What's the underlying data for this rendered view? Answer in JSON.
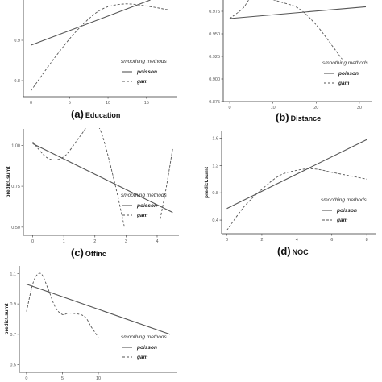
{
  "legend": {
    "title": "smoothing methods",
    "solid_label": "poisson",
    "dashed_label": "gam"
  },
  "colors": {
    "line": "#555555",
    "axis": "#333333",
    "text": "#111111"
  },
  "chart_data": [
    {
      "type": "line",
      "panel_letter": "(a)",
      "caption": "Education",
      "xlabel": "",
      "ylabel": "",
      "xlim": [
        -1,
        19
      ],
      "ylim": [
        0.76,
        1.0
      ],
      "xticks": [
        0,
        5,
        10,
        15
      ],
      "yticks": [
        0.8,
        0.9
      ],
      "xtick_labels": [
        "0",
        "5",
        "10",
        "15"
      ],
      "ytick_labels": [
        "0.8",
        "0.9"
      ],
      "series": [
        {
          "name": "poisson",
          "style": "solid",
          "x": [
            0,
            15.5
          ],
          "y": [
            0.888,
            1.0
          ]
        },
        {
          "name": "gam",
          "style": "dashed",
          "x": [
            0,
            3,
            6,
            9,
            12,
            15,
            18
          ],
          "y": [
            0.775,
            0.855,
            0.925,
            0.975,
            0.99,
            0.985,
            0.975
          ]
        }
      ]
    },
    {
      "type": "line",
      "panel_letter": "(b)",
      "caption": "Distance",
      "xlabel": "",
      "ylabel": "",
      "xlim": [
        -1.5,
        33
      ],
      "ylim": [
        0.875,
        0.9875
      ],
      "xticks": [
        0,
        10,
        20,
        30
      ],
      "yticks": [
        0.875,
        0.9,
        0.925,
        0.95,
        0.975
      ],
      "xtick_labels": [
        "0",
        "10",
        "20",
        "30"
      ],
      "ytick_labels": [
        "0.875",
        "0.900",
        "0.925",
        "0.950",
        "0.975"
      ],
      "series": [
        {
          "name": "poisson",
          "style": "solid",
          "x": [
            0,
            31.5
          ],
          "y": [
            0.967,
            0.98
          ]
        },
        {
          "name": "gam",
          "style": "dashed",
          "x": [
            0,
            3,
            5,
            8,
            12,
            16,
            20,
            24,
            26
          ],
          "y": [
            0.967,
            0.978,
            0.99,
            0.99,
            0.985,
            0.978,
            0.96,
            0.935,
            0.922
          ]
        }
      ]
    },
    {
      "type": "line",
      "panel_letter": "(c)",
      "caption": "Offinc",
      "xlabel": "",
      "ylabel": "predict.sumt",
      "xlim": [
        -0.3,
        4.7
      ],
      "ylim": [
        0.45,
        1.1
      ],
      "xticks": [
        0,
        1,
        2,
        3,
        4
      ],
      "yticks": [
        0.5,
        0.75,
        1.0
      ],
      "xtick_labels": [
        "0",
        "1",
        "2",
        "3",
        "4"
      ],
      "ytick_labels": [
        "0.50",
        "0.75",
        "1.00"
      ],
      "series": [
        {
          "name": "poisson",
          "style": "solid",
          "x": [
            0,
            4.5
          ],
          "y": [
            1.01,
            0.59
          ]
        },
        {
          "name": "gam",
          "style": "dashed",
          "x": [
            0,
            0.5,
            1.0,
            1.5,
            1.9,
            2.2,
            2.6,
            2.95
          ],
          "y": [
            1.02,
            0.92,
            0.93,
            1.05,
            1.14,
            1.08,
            0.8,
            0.5
          ]
        },
        {
          "name": "gam",
          "style": "dashed",
          "x": [
            4.1,
            4.3,
            4.5
          ],
          "y": [
            0.55,
            0.75,
            0.98
          ]
        }
      ]
    },
    {
      "type": "line",
      "panel_letter": "(d)",
      "caption": "NOC",
      "xlabel": "",
      "ylabel": "predict.sumt",
      "xlim": [
        -0.3,
        8.5
      ],
      "ylim": [
        0.2,
        1.7
      ],
      "xticks": [
        0,
        2,
        4,
        6,
        8
      ],
      "yticks": [
        0.4,
        0.8,
        1.2,
        1.6
      ],
      "xtick_labels": [
        "0",
        "2",
        "4",
        "6",
        "8"
      ],
      "ytick_labels": [
        "0.4",
        "0.8",
        "1.2",
        "1.6"
      ],
      "series": [
        {
          "name": "poisson",
          "style": "solid",
          "x": [
            0,
            8
          ],
          "y": [
            0.57,
            1.58
          ]
        },
        {
          "name": "gam",
          "style": "dashed",
          "x": [
            0,
            1,
            2,
            3,
            4,
            5,
            6,
            7,
            8
          ],
          "y": [
            0.25,
            0.6,
            0.85,
            1.05,
            1.13,
            1.15,
            1.1,
            1.05,
            1.0
          ]
        }
      ]
    },
    {
      "type": "line",
      "panel_letter": "",
      "caption": "",
      "xlabel": "",
      "ylabel": "predict.sumt",
      "xlim": [
        -1,
        21
      ],
      "ylim": [
        0.45,
        1.15
      ],
      "xticks": [
        0,
        5,
        10
      ],
      "yticks": [
        0.5,
        0.7,
        0.9,
        1.1
      ],
      "xtick_labels": [
        "0",
        "5",
        "10"
      ],
      "ytick_labels": [
        "0.5",
        "0.7",
        "0.9",
        "1.1"
      ],
      "series": [
        {
          "name": "poisson",
          "style": "solid",
          "x": [
            0,
            20
          ],
          "y": [
            1.03,
            0.7
          ]
        },
        {
          "name": "gam",
          "style": "dashed",
          "x": [
            0,
            1,
            2,
            3,
            4,
            5,
            6,
            8,
            9,
            10
          ],
          "y": [
            0.85,
            1.05,
            1.1,
            1.0,
            0.88,
            0.83,
            0.84,
            0.82,
            0.75,
            0.68
          ]
        }
      ]
    }
  ]
}
